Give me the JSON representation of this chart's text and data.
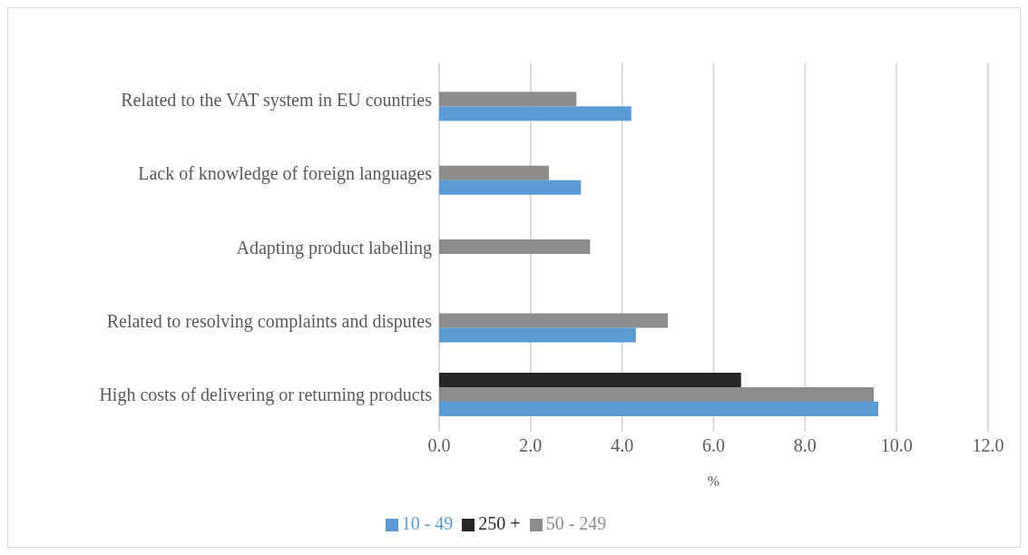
{
  "chart_data": {
    "type": "bar",
    "orientation": "horizontal",
    "categories": [
      "Related to the VAT system in EU countries",
      "Lack of knowledge of foreign languages",
      "Adapting product labelling",
      "Related to resolving complaints and disputes",
      "High costs of delivering or returning products"
    ],
    "series": [
      {
        "name": "250 +",
        "color": "#262626",
        "values": [
          null,
          null,
          null,
          null,
          6.6
        ]
      },
      {
        "name": "50 - 249",
        "color": "#8c8c8c",
        "values": [
          3.0,
          2.4,
          3.3,
          5.0,
          9.5
        ]
      },
      {
        "name": "10 - 49",
        "color": "#5b9bd5",
        "values": [
          4.2,
          3.1,
          null,
          4.3,
          9.6
        ]
      }
    ],
    "xlabel": "%",
    "xlim": [
      0,
      12
    ],
    "xticks": [
      {
        "value": 0,
        "label": "0.0"
      },
      {
        "value": 2,
        "label": "2.0"
      },
      {
        "value": 4,
        "label": "4.0"
      },
      {
        "value": 6,
        "label": "6.0"
      },
      {
        "value": 8,
        "label": "8.0"
      },
      {
        "value": 10,
        "label": "10.0"
      },
      {
        "value": 12,
        "label": "12.0"
      }
    ],
    "grid": "x",
    "legend": "bottom"
  }
}
